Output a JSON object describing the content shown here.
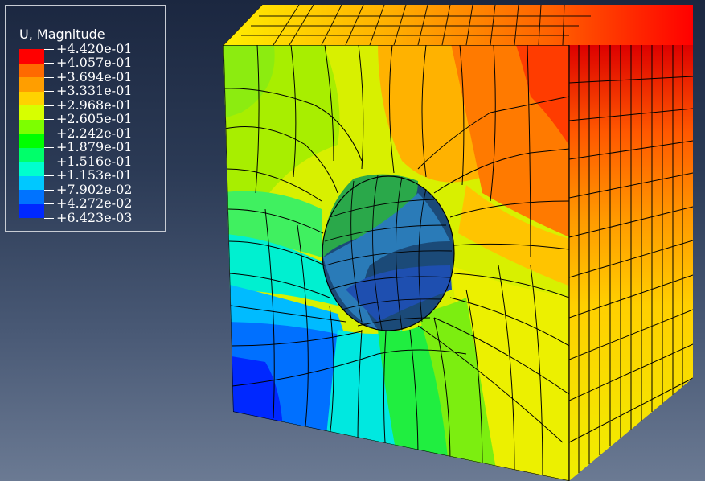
{
  "legend": {
    "title": "U, Magnitude",
    "labels": [
      "+4.420e-01",
      "+4.057e-01",
      "+3.694e-01",
      "+3.331e-01",
      "+2.968e-01",
      "+2.605e-01",
      "+2.242e-01",
      "+1.879e-01",
      "+1.516e-01",
      "+1.153e-01",
      "+7.902e-02",
      "+4.272e-02",
      "+6.423e-03"
    ],
    "colors": [
      "#ff0000",
      "#ff6a00",
      "#ff9e00",
      "#ffd200",
      "#d7ff00",
      "#7dff00",
      "#00ff00",
      "#00ff6a",
      "#00ffce",
      "#00c8ff",
      "#0073ff",
      "#0028ff"
    ]
  }
}
